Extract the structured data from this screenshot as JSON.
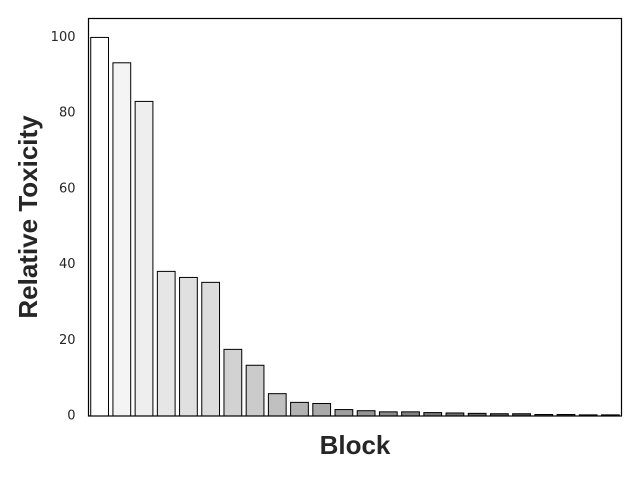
{
  "chart_data": {
    "type": "bar",
    "categories": [
      null,
      null,
      null,
      null,
      null,
      null,
      null,
      null,
      null,
      null,
      null,
      null,
      null,
      null,
      null,
      null,
      null,
      null,
      null,
      null,
      null,
      null,
      null,
      null
    ],
    "values": [
      100,
      93.3,
      83.1,
      38.2,
      36.6,
      35.3,
      17.6,
      13.4,
      5.9,
      3.6,
      3.3,
      1.7,
      1.4,
      1.1,
      1.1,
      0.9,
      0.8,
      0.7,
      0.6,
      0.6,
      0.4,
      0.4,
      0.3,
      0.3
    ],
    "colors": [
      "#ffffff",
      "#f4f4f4",
      "#eeeeee",
      "#e6e6e6",
      "#e0e0e0",
      "#dcdcdc",
      "#d2d2d2",
      "#cbcbcb",
      "#c0c0c0",
      "#b3b3b3",
      "#a9a9a9",
      "#9e9e9e",
      "#949494",
      "#8a8a8a",
      "#808080",
      "#777777",
      "#6e6e6e",
      "#656565",
      "#5c5c5c",
      "#535353",
      "#4b4b4b",
      "#434343",
      "#3b3b3b",
      "#333333"
    ],
    "xlabel": "Block",
    "ylabel": "Relative Toxicity",
    "ylim": [
      0,
      105
    ],
    "yticks": [
      0,
      20,
      40,
      60,
      80,
      100
    ],
    "grid": false
  }
}
